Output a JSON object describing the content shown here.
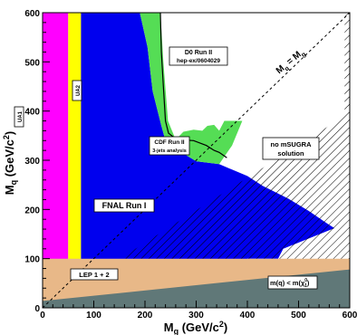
{
  "chart_data": {
    "type": "area",
    "xlabel": "M",
    "xlabel_sub": "g",
    "xlabel_unit": " (GeV/c",
    "xlabel_unit_sup": "2",
    "xlabel_unit_end": ")",
    "ylabel": "M",
    "ylabel_sub": "q",
    "ylabel_unit": " (GeV/c",
    "ylabel_unit_sup": "2",
    "ylabel_unit_end": ")",
    "xlim": [
      0,
      600
    ],
    "ylim": [
      0,
      600
    ],
    "xticks": [
      0,
      100,
      200,
      300,
      400,
      500,
      600
    ],
    "yticks": [
      0,
      100,
      200,
      300,
      400,
      500,
      600
    ],
    "xtick_labels": [
      "0",
      "100",
      "200",
      "300",
      "400",
      "500",
      "600"
    ],
    "ytick_labels": [
      "0",
      "100",
      "200",
      "300",
      "400",
      "500",
      "600"
    ],
    "colors": {
      "UA1": "#ff00ff",
      "UA2": "#ffff00",
      "FNAL Run I": "#0000ee",
      "CDF Run II": "#55dd55",
      "LEP 1 + 2": "#e8b888",
      "m(q) < m(chi)": "#607878",
      "axis": "#000000"
    },
    "regions": [
      {
        "name": "UA1",
        "label": "UA1",
        "polygon": [
          [
            0,
            0
          ],
          [
            50,
            0
          ],
          [
            50,
            600
          ],
          [
            0,
            600
          ]
        ]
      },
      {
        "name": "UA2",
        "label": "UA2",
        "polygon": [
          [
            50,
            0
          ],
          [
            75,
            0
          ],
          [
            75,
            600
          ],
          [
            50,
            600
          ]
        ]
      },
      {
        "name": "FNAL Run I",
        "label": "FNAL Run I",
        "polygon": [
          [
            75,
            0
          ],
          [
            75,
            600
          ],
          [
            190,
            600
          ],
          [
            205,
            530
          ],
          [
            215,
            440
          ],
          [
            232,
            370
          ],
          [
            240,
            340
          ],
          [
            262,
            322
          ],
          [
            300,
            298
          ],
          [
            345,
            292
          ],
          [
            400,
            268
          ],
          [
            430,
            248
          ],
          [
            480,
            222
          ],
          [
            520,
            197
          ],
          [
            555,
            172
          ],
          [
            570,
            162
          ],
          [
            470,
            120
          ],
          [
            460,
            100
          ],
          [
            400,
            100
          ],
          [
            380,
            78
          ],
          [
            310,
            75
          ],
          [
            300,
            68
          ],
          [
            75,
            0
          ]
        ]
      },
      {
        "name": "CDF Run II",
        "label": "CDF Run II",
        "sublabel": "3-jets analysis",
        "polygon": [
          [
            190,
            600
          ],
          [
            205,
            530
          ],
          [
            215,
            440
          ],
          [
            232,
            370
          ],
          [
            240,
            340
          ],
          [
            262,
            322
          ],
          [
            300,
            298
          ],
          [
            345,
            292
          ],
          [
            370,
            330
          ],
          [
            390,
            380
          ],
          [
            370,
            380
          ],
          [
            355,
            380
          ],
          [
            345,
            360
          ],
          [
            335,
            372
          ],
          [
            322,
            370
          ],
          [
            312,
            360
          ],
          [
            295,
            362
          ],
          [
            275,
            358
          ],
          [
            260,
            342
          ],
          [
            245,
            380
          ],
          [
            236,
            500
          ],
          [
            230,
            600
          ]
        ]
      }
    ],
    "hatched_regions": [
      {
        "name": "no mSUGRA solution",
        "label": "no mSUGRA solution",
        "polygon": [
          [
            0,
            0
          ],
          [
            600,
            0
          ],
          [
            600,
            600
          ],
          [
            590,
            600
          ],
          [
            590,
            390
          ]
        ]
      }
    ],
    "bottom_bands": [
      {
        "name": "LEP 1 + 2",
        "label": "LEP 1 + 2",
        "polygon": [
          [
            0,
            0
          ],
          [
            600,
            0
          ],
          [
            600,
            100
          ],
          [
            0,
            100
          ]
        ]
      },
      {
        "name": "m(q) < m(chi)",
        "label": "m(q) < m(χ",
        "label_sup": "0",
        "label_sub": "1",
        "label_end": ")",
        "polygon": [
          [
            0,
            0
          ],
          [
            600,
            0
          ],
          [
            600,
            78
          ],
          [
            0,
            14
          ]
        ]
      }
    ],
    "curves": [
      {
        "name": "D0 Run II",
        "label": "D0 Run II",
        "sublabel": "hep-ex/0604029",
        "points": [
          [
            230,
            600
          ],
          [
            232,
            520
          ],
          [
            236,
            450
          ],
          [
            240,
            380
          ],
          [
            246,
            355
          ],
          [
            262,
            342
          ],
          [
            295,
            340
          ],
          [
            320,
            330
          ],
          [
            335,
            320
          ],
          [
            345,
            316
          ],
          [
            360,
            305
          ]
        ]
      },
      {
        "name": "diagonal",
        "label": "M",
        "label_sub_1": "q",
        "label_mid": " = M",
        "label_sub_2": "g",
        "points": [
          [
            0,
            0
          ],
          [
            600,
            600
          ]
        ]
      }
    ],
    "annotations": [
      {
        "text": "UA1"
      },
      {
        "text": "UA2"
      },
      {
        "text": "D0 Run II"
      },
      {
        "text": "hep-ex/0604029"
      },
      {
        "text": "CDF Run II"
      },
      {
        "text": "3-jets analysis"
      },
      {
        "text": "no mSUGRA"
      },
      {
        "text": "solution"
      },
      {
        "text": "FNAL Run I"
      },
      {
        "text": "LEP 1 + 2"
      }
    ]
  }
}
